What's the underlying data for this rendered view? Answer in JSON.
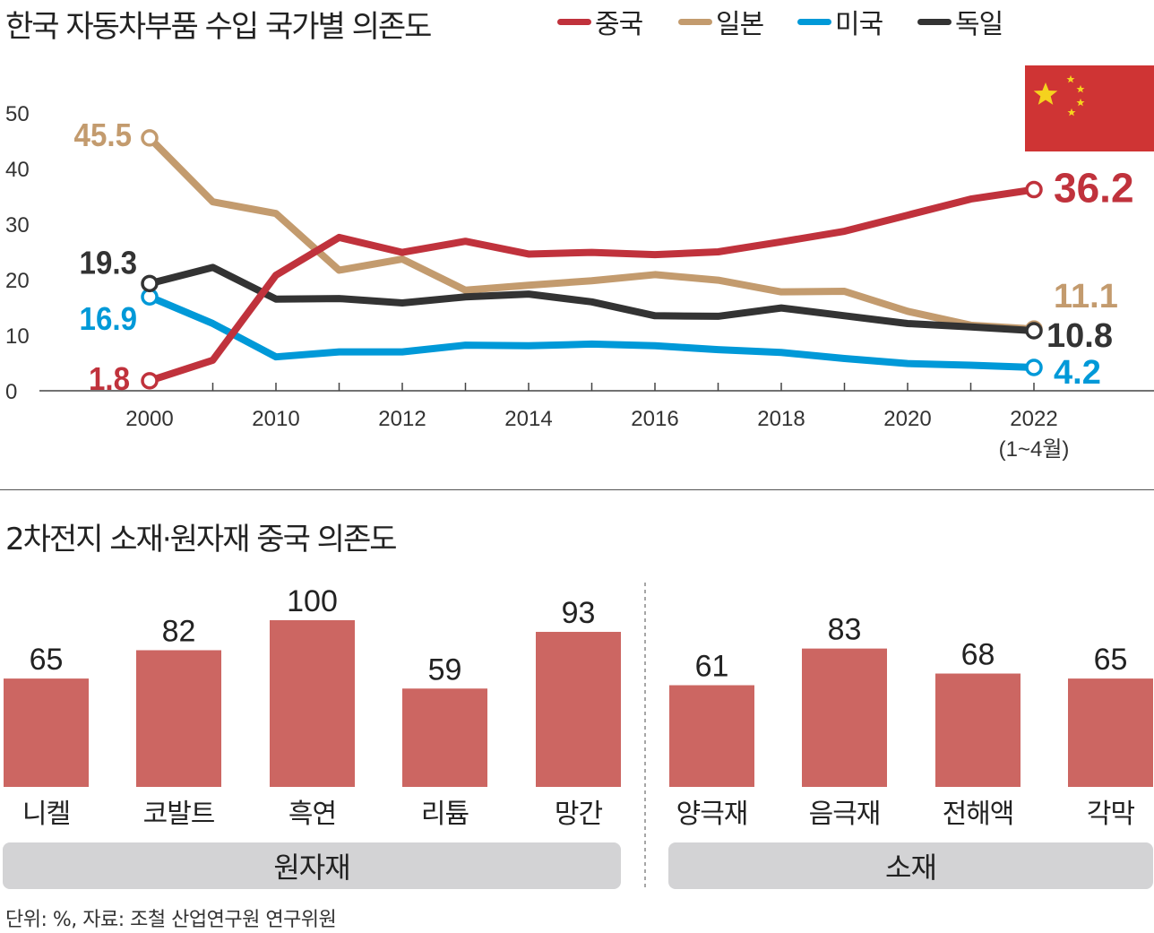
{
  "chart_data": [
    {
      "type": "line",
      "title": "한국 자동차부품 수입 국가별 의존도",
      "x": [
        "2000",
        "2009",
        "2010",
        "2011",
        "2012",
        "2013",
        "2014",
        "2015",
        "2016",
        "2017",
        "2018",
        "2019",
        "2020",
        "2021",
        "2022"
      ],
      "x_tick_labels": [
        "2000",
        "2010",
        "2012",
        "2014",
        "2016",
        "2018",
        "2020",
        "2022"
      ],
      "x_sub_label": "(1~4월)",
      "ylim": [
        0,
        50
      ],
      "y_ticks": [
        "0",
        "10",
        "20",
        "30",
        "40",
        "50"
      ],
      "series": [
        {
          "name": "중국",
          "color": "#c0323c",
          "values": [
            1.8,
            5.5,
            20.8,
            27.6,
            24.9,
            26.9,
            24.6,
            24.9,
            24.5,
            25.0,
            26.8,
            28.7,
            31.6,
            34.5,
            36.2
          ],
          "start_label": "1.8",
          "end_label": "36.2"
        },
        {
          "name": "일본",
          "color": "#c39b6e",
          "values": [
            45.5,
            34.0,
            31.9,
            21.7,
            23.7,
            18.1,
            19.0,
            19.8,
            20.9,
            19.9,
            17.8,
            17.9,
            14.3,
            11.8,
            11.1
          ],
          "start_label": "45.5",
          "end_label": "11.1"
        },
        {
          "name": "미국",
          "color": "#0099d8",
          "values": [
            16.9,
            12.1,
            6.1,
            7.0,
            7.0,
            8.2,
            8.1,
            8.4,
            8.1,
            7.4,
            6.9,
            5.8,
            4.9,
            4.6,
            4.2
          ],
          "start_label": "16.9",
          "end_label": "4.2"
        },
        {
          "name": "독일",
          "color": "#333333",
          "values": [
            19.3,
            22.2,
            16.5,
            16.6,
            15.8,
            16.9,
            17.4,
            16.0,
            13.5,
            13.4,
            14.9,
            13.5,
            12.1,
            11.5,
            10.8
          ],
          "start_label": "19.3",
          "end_label": "10.8"
        }
      ]
    },
    {
      "type": "bar",
      "title": "2차전지 소재·원자재 중국 의존도",
      "categories": [
        "니켈",
        "코발트",
        "흑연",
        "리튬",
        "망간",
        "양극재",
        "음극재",
        "전해액",
        "각막"
      ],
      "values": [
        65,
        82,
        100,
        59,
        93,
        61,
        83,
        68,
        65
      ],
      "value_labels": [
        "65",
        "82",
        "100",
        "59",
        "93",
        "61",
        "83",
        "68",
        "65"
      ],
      "color": "#cc6662",
      "groups": [
        {
          "label": "원자재",
          "members": [
            "니켈",
            "코발트",
            "흑연",
            "리튬",
            "망간"
          ]
        },
        {
          "label": "소재",
          "members": [
            "양극재",
            "음극재",
            "전해액",
            "각막"
          ]
        }
      ],
      "ylim": [
        0,
        100
      ]
    }
  ],
  "flag": {
    "name": "china-flag",
    "field_color": "#cf3434",
    "star_color": "#f5d21e"
  },
  "source": "단위: %, 자료: 조철 산업연구원 연구위원"
}
